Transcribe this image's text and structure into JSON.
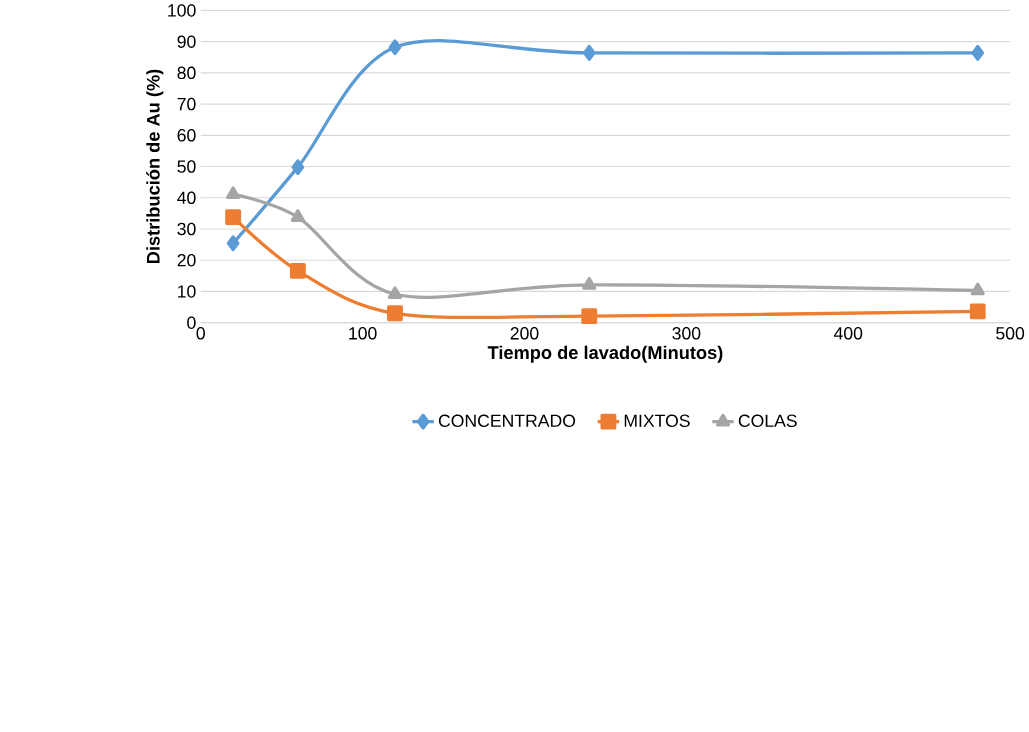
{
  "chart_data": {
    "type": "line",
    "xlabel": "Tiempo de lavado(Minutos)",
    "ylabel": "Distribución de Au (%)",
    "x": [
      20,
      60,
      120,
      240,
      480
    ],
    "series": [
      {
        "name": "CONCENTRADO",
        "color": "#5b9bd5",
        "marker": "diamond",
        "values": [
          25.4,
          49.8,
          88.2,
          86.4,
          86.4
        ]
      },
      {
        "name": "MIXTOS",
        "color": "#ed7d31",
        "marker": "square",
        "values": [
          33.8,
          16.6,
          3.0,
          2.1,
          3.6
        ]
      },
      {
        "name": "COLAS",
        "color": "#a5a5a5",
        "marker": "triangle",
        "values": [
          41.1,
          33.8,
          9.1,
          12.1,
          10.3
        ]
      }
    ],
    "xlim": [
      0,
      500
    ],
    "xticks": [
      0,
      100,
      200,
      300,
      400,
      500
    ],
    "ylim": [
      0,
      100
    ],
    "yticks": [
      0,
      10,
      20,
      30,
      40,
      50,
      60,
      70,
      80,
      90,
      100
    ],
    "grid": "y",
    "legend": "bottom"
  }
}
